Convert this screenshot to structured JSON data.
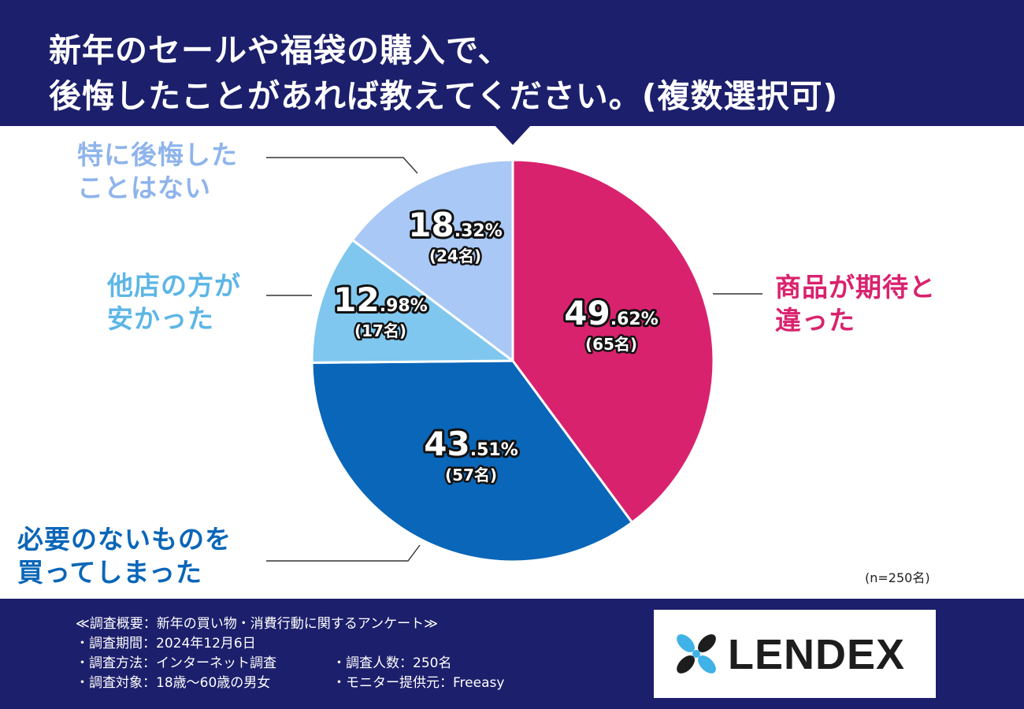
{
  "title": {
    "line1": "新年のセールや福袋の購入で、",
    "line2": "後悔したことがあれば教えてください。(複数選択可)"
  },
  "chart_data": {
    "type": "pie",
    "title": "新年のセールや福袋の購入で、後悔したことがあれば教えてください。(複数選択可)",
    "sample_note": "(n=250名)",
    "slices": [
      {
        "key": "disappointed",
        "label_lines": [
          "商品が期待と",
          "違った"
        ],
        "int": "49",
        "dec": ".62%",
        "count": "(65名)",
        "value": 49.62,
        "share": 0.3988,
        "color": "#d9226e",
        "label_color": "#d9226e"
      },
      {
        "key": "unnecessary",
        "label_lines": [
          "必要のないものを",
          "買ってしまった"
        ],
        "int": "43",
        "dec": ".51%",
        "count": "(57名)",
        "value": 43.51,
        "share": 0.3497,
        "color": "#0a66b8",
        "label_color": "#0a66b8"
      },
      {
        "key": "cheaper",
        "label_lines": [
          "他店の方が",
          "安かった"
        ],
        "int": "12",
        "dec": ".98%",
        "count": "(17名)",
        "value": 12.98,
        "share": 0.1043,
        "color": "#7fc7ee",
        "label_color": "#5db6e6"
      },
      {
        "key": "no-regret",
        "label_lines": [
          "特に後悔した",
          "ことはない"
        ],
        "int": "18",
        "dec": ".32%",
        "count": "(24名)",
        "value": 18.32,
        "share": 0.1472,
        "color": "#a9c8f5",
        "label_color": "#8fb4ec"
      }
    ]
  },
  "footer": {
    "survey_lines": [
      {
        "left": "≪調査概要：新年の買い物・消費行動に関するアンケート≫",
        "right": ""
      },
      {
        "left": "・調査期間：2024年12月6日",
        "right": ""
      },
      {
        "left": "・調査方法：インターネット調査",
        "right": "・調査人数：250名"
      },
      {
        "left": "・調査対象：18歳～60歳の男女",
        "right": "・モニター提供元：Freeasy"
      }
    ],
    "logo_text": "LENDEX",
    "logo_mark_color": "#3fb2e8",
    "logo_dark_color": "#1d1d1d"
  }
}
